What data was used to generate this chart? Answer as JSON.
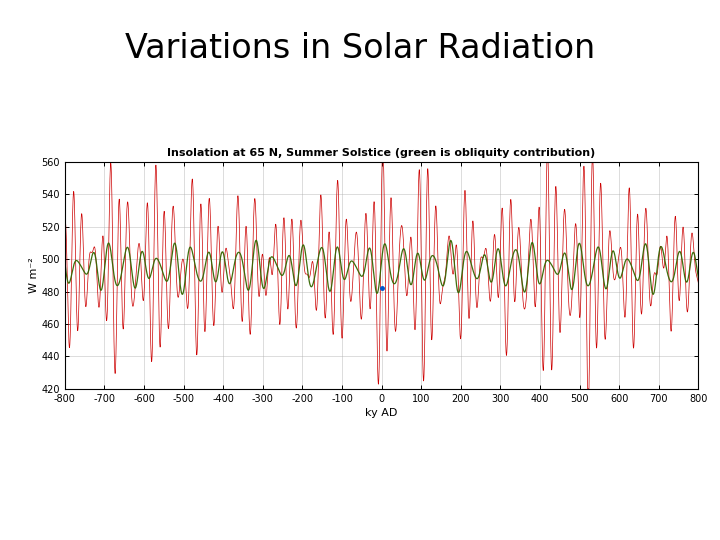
{
  "title": "Variations in Solar Radiation",
  "chart_title": "Insolation at 65 N, Summer Solstice (green is obliquity contribution)",
  "xlabel": "ky AD",
  "ylabel": "W m⁻²",
  "xlim": [
    -800,
    800
  ],
  "ylim": [
    420,
    560
  ],
  "yticks": [
    420,
    440,
    460,
    480,
    500,
    520,
    540,
    560
  ],
  "xticks": [
    -800,
    -700,
    -600,
    -500,
    -400,
    -300,
    -200,
    -100,
    0,
    100,
    200,
    300,
    400,
    500,
    600,
    700,
    800
  ],
  "red_color": "#cc0000",
  "green_color": "#336600",
  "blue_dot_color": "#0055cc",
  "blue_dot_x": 0,
  "blue_dot_y": 482,
  "background_color": "#ffffff",
  "title_fontsize": 24,
  "chart_title_fontsize": 8,
  "axis_label_fontsize": 8,
  "tick_fontsize": 7
}
